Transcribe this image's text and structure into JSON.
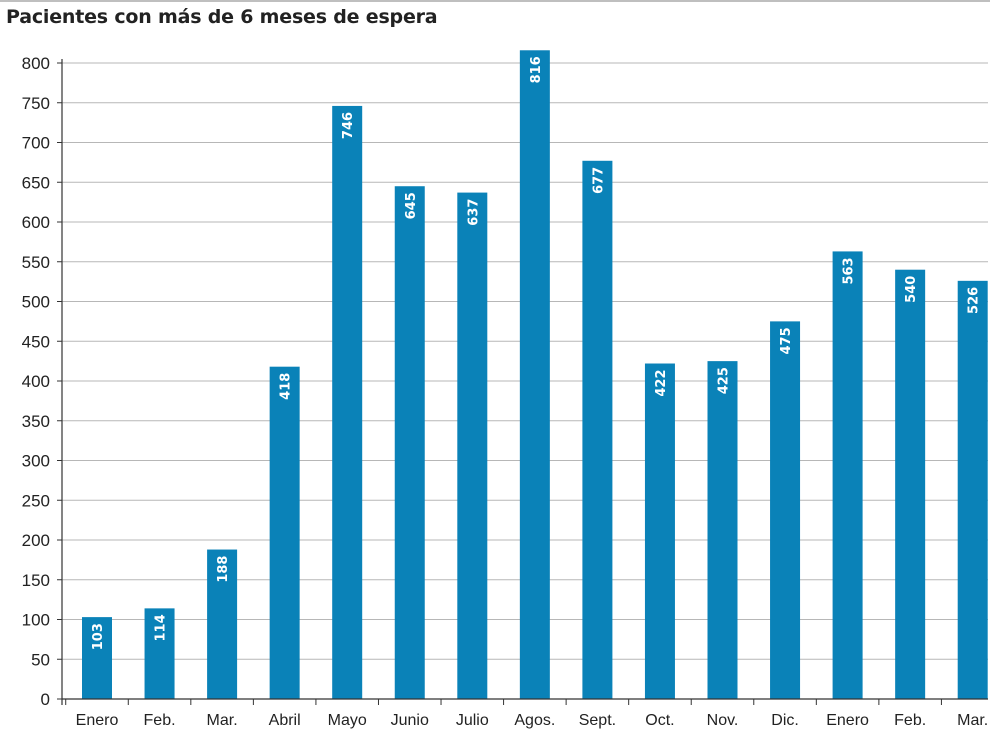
{
  "title": "Pacientes con más de 6 meses de espera",
  "colors": {
    "bar": "#0a82b8",
    "grid": "#b7b7b7",
    "axis": "#333333",
    "label_inside": "#ffffff",
    "text": "#222222"
  },
  "chart_data": {
    "type": "bar",
    "title": "Pacientes con más de 6 meses de espera",
    "xlabel": "",
    "ylabel": "",
    "categories": [
      "Enero",
      "Feb.",
      "Mar.",
      "Abril",
      "Mayo",
      "Junio",
      "Julio",
      "Agos.",
      "Sept.",
      "Oct.",
      "Nov.",
      "Dic.",
      "Enero",
      "Feb.",
      "Mar."
    ],
    "values": [
      103,
      114,
      188,
      418,
      746,
      645,
      637,
      816,
      677,
      422,
      425,
      475,
      563,
      540,
      526
    ],
    "ylim": [
      0,
      800
    ],
    "yticks": [
      0,
      50,
      100,
      150,
      200,
      250,
      300,
      350,
      400,
      450,
      500,
      550,
      600,
      650,
      700,
      750,
      800
    ],
    "grid": true,
    "data_labels": "inside-top-vertical",
    "legend": "none"
  }
}
